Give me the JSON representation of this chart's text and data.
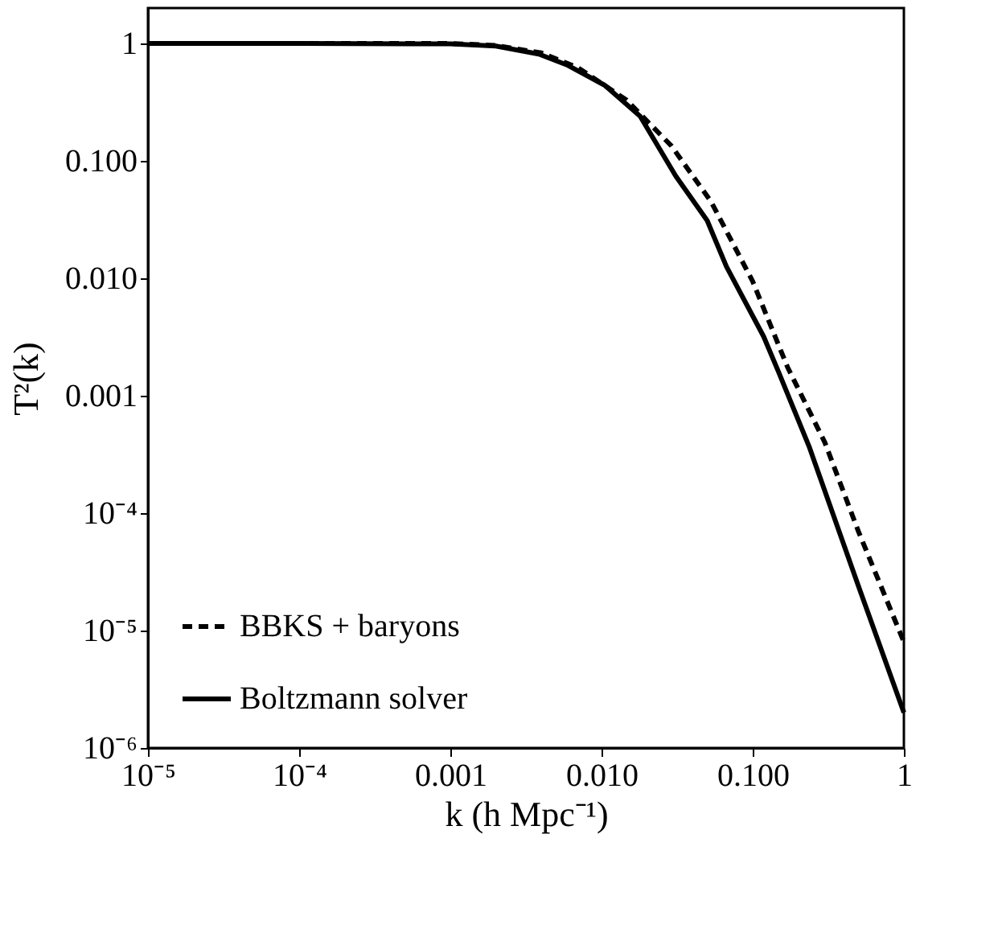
{
  "chart_data": {
    "type": "line",
    "xlabel": "k (h Mpc⁻¹)",
    "ylabel": "T²(k)",
    "log": "xy",
    "grid": false,
    "legend": "bottom left",
    "marker": "none",
    "xlim": [
      1e-05,
      1
    ],
    "ylim": [
      1e-06,
      2
    ],
    "xticks": [
      {
        "value": 1e-05,
        "label": "10⁻⁵"
      },
      {
        "value": 0.0001,
        "label": "10⁻⁴"
      },
      {
        "value": 0.001,
        "label": "0.001"
      },
      {
        "value": 0.01,
        "label": "0.010"
      },
      {
        "value": 0.1,
        "label": "0.100"
      },
      1
    ],
    "yticks": [
      {
        "value": 1e-06,
        "label": "10⁻⁶"
      },
      {
        "value": 1e-05,
        "label": "10⁻⁵"
      },
      {
        "value": 0.0001,
        "label": "10⁻⁴"
      },
      {
        "value": 0.001,
        "label": "0.001"
      },
      {
        "value": 0.01,
        "label": "0.010"
      },
      {
        "value": 0.1,
        "label": "0.100"
      },
      1
    ],
    "series": [
      {
        "name": "BBKS + baryons",
        "color": "#000000",
        "line_style": "dashed",
        "x": [
          1e-05,
          0.0001,
          0.001,
          0.002,
          0.004,
          0.007,
          0.0146,
          0.029,
          0.053,
          0.1,
          0.17,
          0.3,
          0.5,
          1
        ],
        "values": [
          1,
          1,
          1,
          0.96,
          0.83,
          0.62,
          0.33,
          0.134,
          0.045,
          0.0094,
          0.00175,
          0.0004,
          7e-05,
          8e-06
        ]
      },
      {
        "name": "Boltzmann solver",
        "color": "#000000",
        "line_style": "solid",
        "x": [
          1e-05,
          0.0001,
          0.001,
          0.002,
          0.00385,
          0.006,
          0.0105,
          0.018,
          0.031,
          0.05,
          0.067,
          0.118,
          0.148,
          0.236,
          0.5,
          1
        ],
        "values": [
          1,
          1,
          0.99,
          0.95,
          0.81,
          0.65,
          0.44,
          0.24,
          0.074,
          0.031,
          0.0126,
          0.0032,
          0.0016,
          0.00037,
          2.4e-05,
          2e-06
        ]
      }
    ]
  }
}
